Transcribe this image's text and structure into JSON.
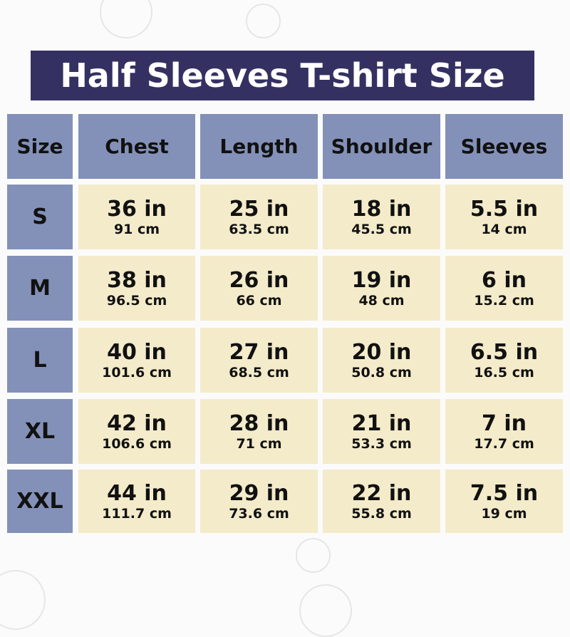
{
  "title": "Half Sleeves T-shirt Size",
  "colors": {
    "title_bg": "#343162",
    "header_bg": "#8391b8",
    "cell_bg": "#f4ebca"
  },
  "headers": [
    "Size",
    "Chest",
    "Length",
    "Shoulder",
    "Sleeves"
  ],
  "rows": [
    {
      "size": "S",
      "cells": [
        {
          "in": "36 in",
          "cm": "91 cm"
        },
        {
          "in": "25 in",
          "cm": "63.5 cm"
        },
        {
          "in": "18 in",
          "cm": "45.5 cm"
        },
        {
          "in": "5.5 in",
          "cm": "14 cm"
        }
      ]
    },
    {
      "size": "M",
      "cells": [
        {
          "in": "38 in",
          "cm": "96.5 cm"
        },
        {
          "in": "26 in",
          "cm": "66 cm"
        },
        {
          "in": "19 in",
          "cm": "48 cm"
        },
        {
          "in": "6 in",
          "cm": "15.2 cm"
        }
      ]
    },
    {
      "size": "L",
      "cells": [
        {
          "in": "40 in",
          "cm": "101.6 cm"
        },
        {
          "in": "27 in",
          "cm": "68.5 cm"
        },
        {
          "in": "20 in",
          "cm": "50.8 cm"
        },
        {
          "in": "6.5 in",
          "cm": "16.5 cm"
        }
      ]
    },
    {
      "size": "XL",
      "cells": [
        {
          "in": "42 in",
          "cm": "106.6 cm"
        },
        {
          "in": "28 in",
          "cm": "71 cm"
        },
        {
          "in": "21 in",
          "cm": "53.3 cm"
        },
        {
          "in": "7 in",
          "cm": "17.7 cm"
        }
      ]
    },
    {
      "size": "XXL",
      "cells": [
        {
          "in": "44 in",
          "cm": "111.7 cm"
        },
        {
          "in": "29 in",
          "cm": "73.6 cm"
        },
        {
          "in": "22 in",
          "cm": "55.8 cm"
        },
        {
          "in": "7.5 in",
          "cm": "19 cm"
        }
      ]
    }
  ]
}
